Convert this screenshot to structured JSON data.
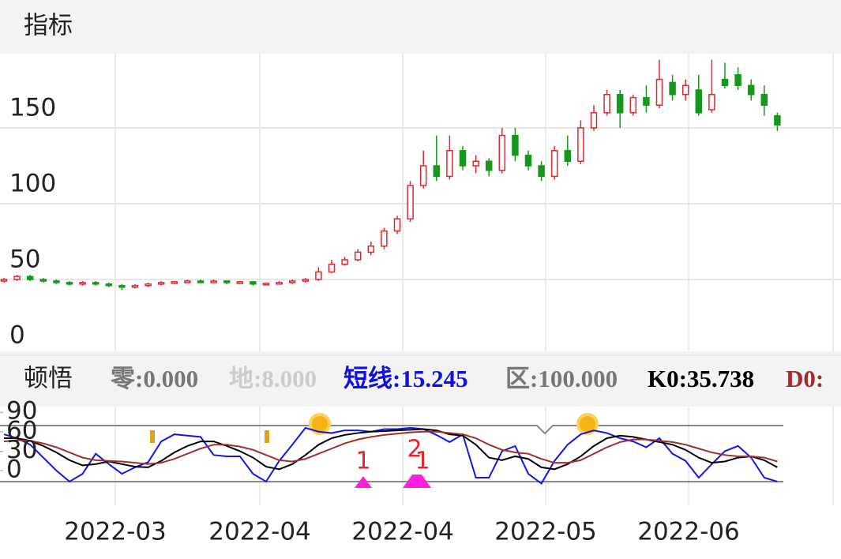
{
  "header": {
    "title": "指标"
  },
  "chart_data": [
    {
      "type": "candlestick",
      "open": [
        49,
        50,
        52,
        50,
        49,
        48,
        47,
        48,
        47,
        46,
        45,
        46,
        47,
        48,
        48.5,
        49,
        48.5,
        49,
        48,
        48.5,
        47,
        47.5,
        48,
        49,
        50,
        55,
        60,
        63,
        68,
        72,
        82,
        90,
        112,
        125,
        118,
        135,
        125,
        128,
        122,
        145,
        132,
        125,
        118,
        135,
        128,
        150,
        160,
        172,
        160,
        170,
        165,
        180,
        172,
        175,
        162,
        182,
        185,
        178,
        172,
        158
      ],
      "close": [
        50,
        52,
        50,
        49,
        48,
        47,
        48,
        47,
        46,
        45,
        46,
        47,
        48,
        48.5,
        49,
        48.5,
        49,
        48,
        48.5,
        47,
        47.5,
        48,
        49,
        50,
        55,
        60,
        63,
        68,
        72,
        82,
        90,
        112,
        125,
        118,
        135,
        125,
        128,
        122,
        145,
        132,
        125,
        118,
        135,
        128,
        150,
        160,
        172,
        160,
        170,
        165,
        182,
        172,
        178,
        160,
        172,
        178,
        178,
        172,
        165,
        152
      ],
      "high": [
        51,
        53,
        53,
        51,
        50,
        49,
        49,
        49,
        48,
        47,
        47,
        48,
        49,
        49,
        50,
        50,
        50,
        49.5,
        49,
        49,
        48,
        49,
        50,
        51,
        58,
        63,
        65,
        70,
        75,
        84,
        92,
        115,
        135,
        145,
        145,
        138,
        132,
        130,
        150,
        150,
        135,
        128,
        138,
        145,
        155,
        165,
        175,
        175,
        172,
        178,
        195,
        185,
        182,
        185,
        195,
        193,
        190,
        182,
        178,
        160
      ],
      "low": [
        48,
        49,
        49,
        48,
        47,
        46,
        46,
        46,
        45,
        43,
        44,
        45,
        46,
        47,
        48,
        48,
        48,
        47,
        47,
        46,
        46,
        47,
        47,
        48,
        49,
        54,
        59,
        62,
        66,
        70,
        80,
        88,
        110,
        115,
        116,
        122,
        120,
        118,
        120,
        128,
        122,
        115,
        116,
        125,
        126,
        148,
        158,
        150,
        158,
        160,
        163,
        168,
        168,
        158,
        160,
        176,
        175,
        168,
        158,
        148
      ],
      "up_color": "#e3262c",
      "down_color": "#16981c",
      "ylim": [
        0,
        200
      ],
      "yticks": [
        0,
        50,
        100,
        150
      ],
      "grid": true
    },
    {
      "type": "line",
      "title": "顿悟",
      "legend": [
        {
          "text": "零:0.000",
          "color": "#777777"
        },
        {
          "text": "地:8.000",
          "color": "#cccccc"
        },
        {
          "text": "短线:15.245",
          "color": "#1010e0"
        },
        {
          "text": "区:100.000",
          "color": "#777777"
        },
        {
          "text": "K0:35.738",
          "color": "#000000"
        },
        {
          "text": "D0:",
          "color": "#a52a2a"
        }
      ],
      "series": [
        {
          "color": "#1515e8",
          "values": [
            56,
            50,
            40,
            20,
            0,
            -17,
            -5,
            26,
            10,
            -5,
            5,
            13,
            45,
            56,
            54,
            52,
            24,
            22,
            22,
            -5,
            -17,
            15,
            40,
            66,
            60,
            58,
            62,
            62,
            60,
            64,
            64,
            66,
            64,
            55,
            44,
            56,
            -11,
            -11,
            30,
            38,
            -5,
            -20,
            15,
            40,
            56,
            62,
            58,
            50,
            45,
            36,
            50,
            26,
            15,
            -11,
            10,
            30,
            38,
            20,
            -11,
            -17
          ]
        },
        {
          "color": "#000000",
          "values": [
            50,
            50,
            46,
            38,
            28,
            16,
            8,
            10,
            14,
            10,
            6,
            5,
            15,
            28,
            38,
            45,
            45,
            38,
            30,
            20,
            6,
            2,
            10,
            24,
            40,
            50,
            55,
            58,
            60,
            61,
            62,
            63,
            64,
            62,
            56,
            54,
            40,
            20,
            16,
            22,
            18,
            5,
            2,
            10,
            22,
            38,
            50,
            54,
            52,
            48,
            44,
            40,
            32,
            20,
            12,
            14,
            20,
            22,
            16,
            5
          ]
        },
        {
          "color": "#a0302a",
          "values": [
            45,
            47,
            46,
            42,
            36,
            28,
            20,
            16,
            15,
            14,
            12,
            10,
            12,
            18,
            26,
            34,
            40,
            40,
            37,
            32,
            24,
            16,
            14,
            18,
            26,
            34,
            42,
            48,
            52,
            55,
            57,
            59,
            60,
            60,
            58,
            56,
            50,
            40,
            32,
            28,
            26,
            18,
            12,
            12,
            16,
            26,
            36,
            44,
            48,
            48,
            46,
            44,
            40,
            34,
            28,
            24,
            22,
            22,
            20,
            14
          ]
        }
      ],
      "annotations": [
        {
          "text": "1",
          "color": "#e3262c"
        },
        {
          "text": "2",
          "color": "#e3262c"
        },
        {
          "text": "1",
          "color": "#e3262c"
        }
      ],
      "ylim": [
        -50,
        100
      ],
      "yticks": [
        0,
        30,
        60,
        90
      ]
    }
  ],
  "x_labels": [
    "2022-03",
    "2022-04",
    "2022-04",
    "2022-05",
    "2022-06"
  ]
}
